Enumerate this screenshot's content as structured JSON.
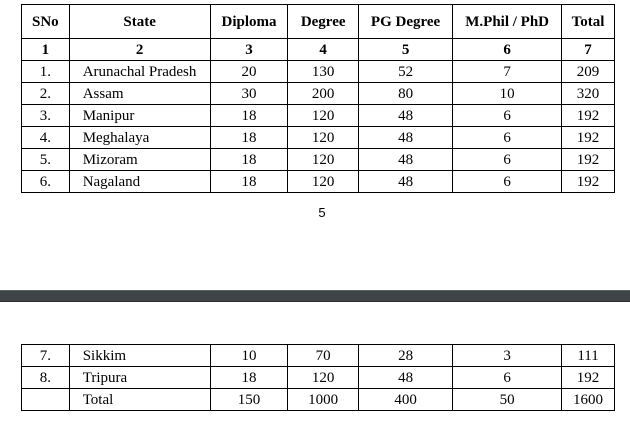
{
  "headers": [
    "SNo",
    "State",
    "Diploma",
    "Degree",
    "PG Degree",
    "M.Phil / PhD",
    "Total"
  ],
  "column_numbers": [
    "1",
    "2",
    "3",
    "4",
    "5",
    "6",
    "7"
  ],
  "rows_top": [
    [
      "1.",
      "Arunachal Pradesh",
      "20",
      "130",
      "52",
      "7",
      "209"
    ],
    [
      "2.",
      "Assam",
      "30",
      "200",
      "80",
      "10",
      "320"
    ],
    [
      "3.",
      "Manipur",
      "18",
      "120",
      "48",
      "6",
      "192"
    ],
    [
      "4.",
      "Meghalaya",
      "18",
      "120",
      "48",
      "6",
      "192"
    ],
    [
      "5.",
      "Mizoram",
      "18",
      "120",
      "48",
      "6",
      "192"
    ],
    [
      "6.",
      "Nagaland",
      "18",
      "120",
      "48",
      "6",
      "192"
    ]
  ],
  "page_number": "5",
  "rows_bottom": [
    [
      "7.",
      "Sikkim",
      "10",
      "70",
      "28",
      "3",
      "111"
    ],
    [
      "8.",
      "Tripura",
      "18",
      "120",
      "48",
      "6",
      "192"
    ],
    [
      "",
      "Total",
      "150",
      "1000",
      "400",
      "50",
      "1600"
    ]
  ]
}
